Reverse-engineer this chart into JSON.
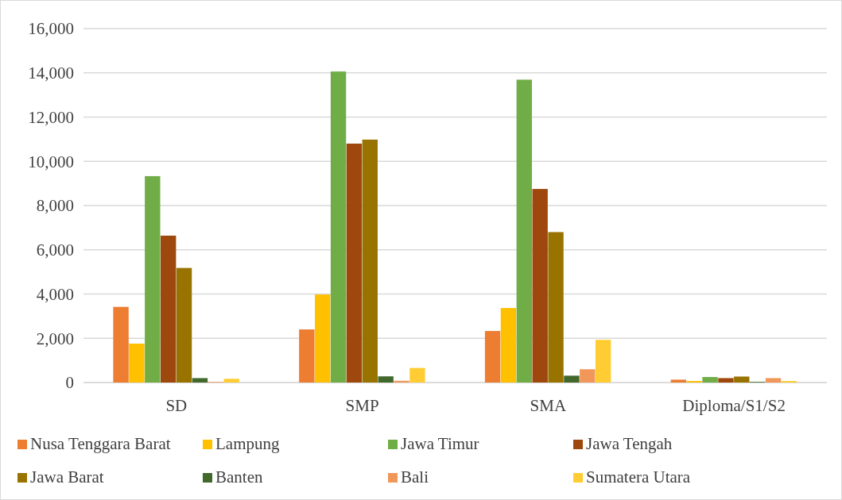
{
  "chart_data": {
    "type": "bar",
    "categories": [
      "SD",
      "SMP",
      "SMA",
      "Diploma/S1/S2"
    ],
    "series": [
      {
        "name": "Nusa Tenggara Barat",
        "color": "#ed7d31",
        "values": [
          3420,
          2400,
          2330,
          130
        ]
      },
      {
        "name": "Lampung",
        "color": "#ffc000",
        "values": [
          1760,
          3980,
          3370,
          70
        ]
      },
      {
        "name": "Jawa Timur",
        "color": "#70ad47",
        "values": [
          9330,
          14060,
          13690,
          250
        ]
      },
      {
        "name": "Jawa Tengah",
        "color": "#9e480e",
        "values": [
          6640,
          10800,
          8750,
          200
        ]
      },
      {
        "name": "Jawa Barat",
        "color": "#997300",
        "values": [
          5180,
          10980,
          6800,
          270
        ]
      },
      {
        "name": "Banten",
        "color": "#43682b",
        "values": [
          200,
          280,
          310,
          30
        ]
      },
      {
        "name": "Bali",
        "color": "#f1975a",
        "values": [
          30,
          80,
          600,
          200
        ]
      },
      {
        "name": "Sumatera Utara",
        "color": "#ffcd33",
        "values": [
          170,
          660,
          1930,
          70
        ]
      }
    ],
    "ylim": [
      0,
      16000
    ],
    "yticks": [
      {
        "value": 0,
        "label": "0"
      },
      {
        "value": 2000,
        "label": "2,000"
      },
      {
        "value": 4000,
        "label": "4,000"
      },
      {
        "value": 6000,
        "label": "6,000"
      },
      {
        "value": 8000,
        "label": "8,000"
      },
      {
        "value": 10000,
        "label": "10,000"
      },
      {
        "value": 12000,
        "label": "12,000"
      },
      {
        "value": 14000,
        "label": "14,000"
      },
      {
        "value": 16000,
        "label": "16,000"
      }
    ],
    "grid": "y",
    "legend": "bottom"
  }
}
